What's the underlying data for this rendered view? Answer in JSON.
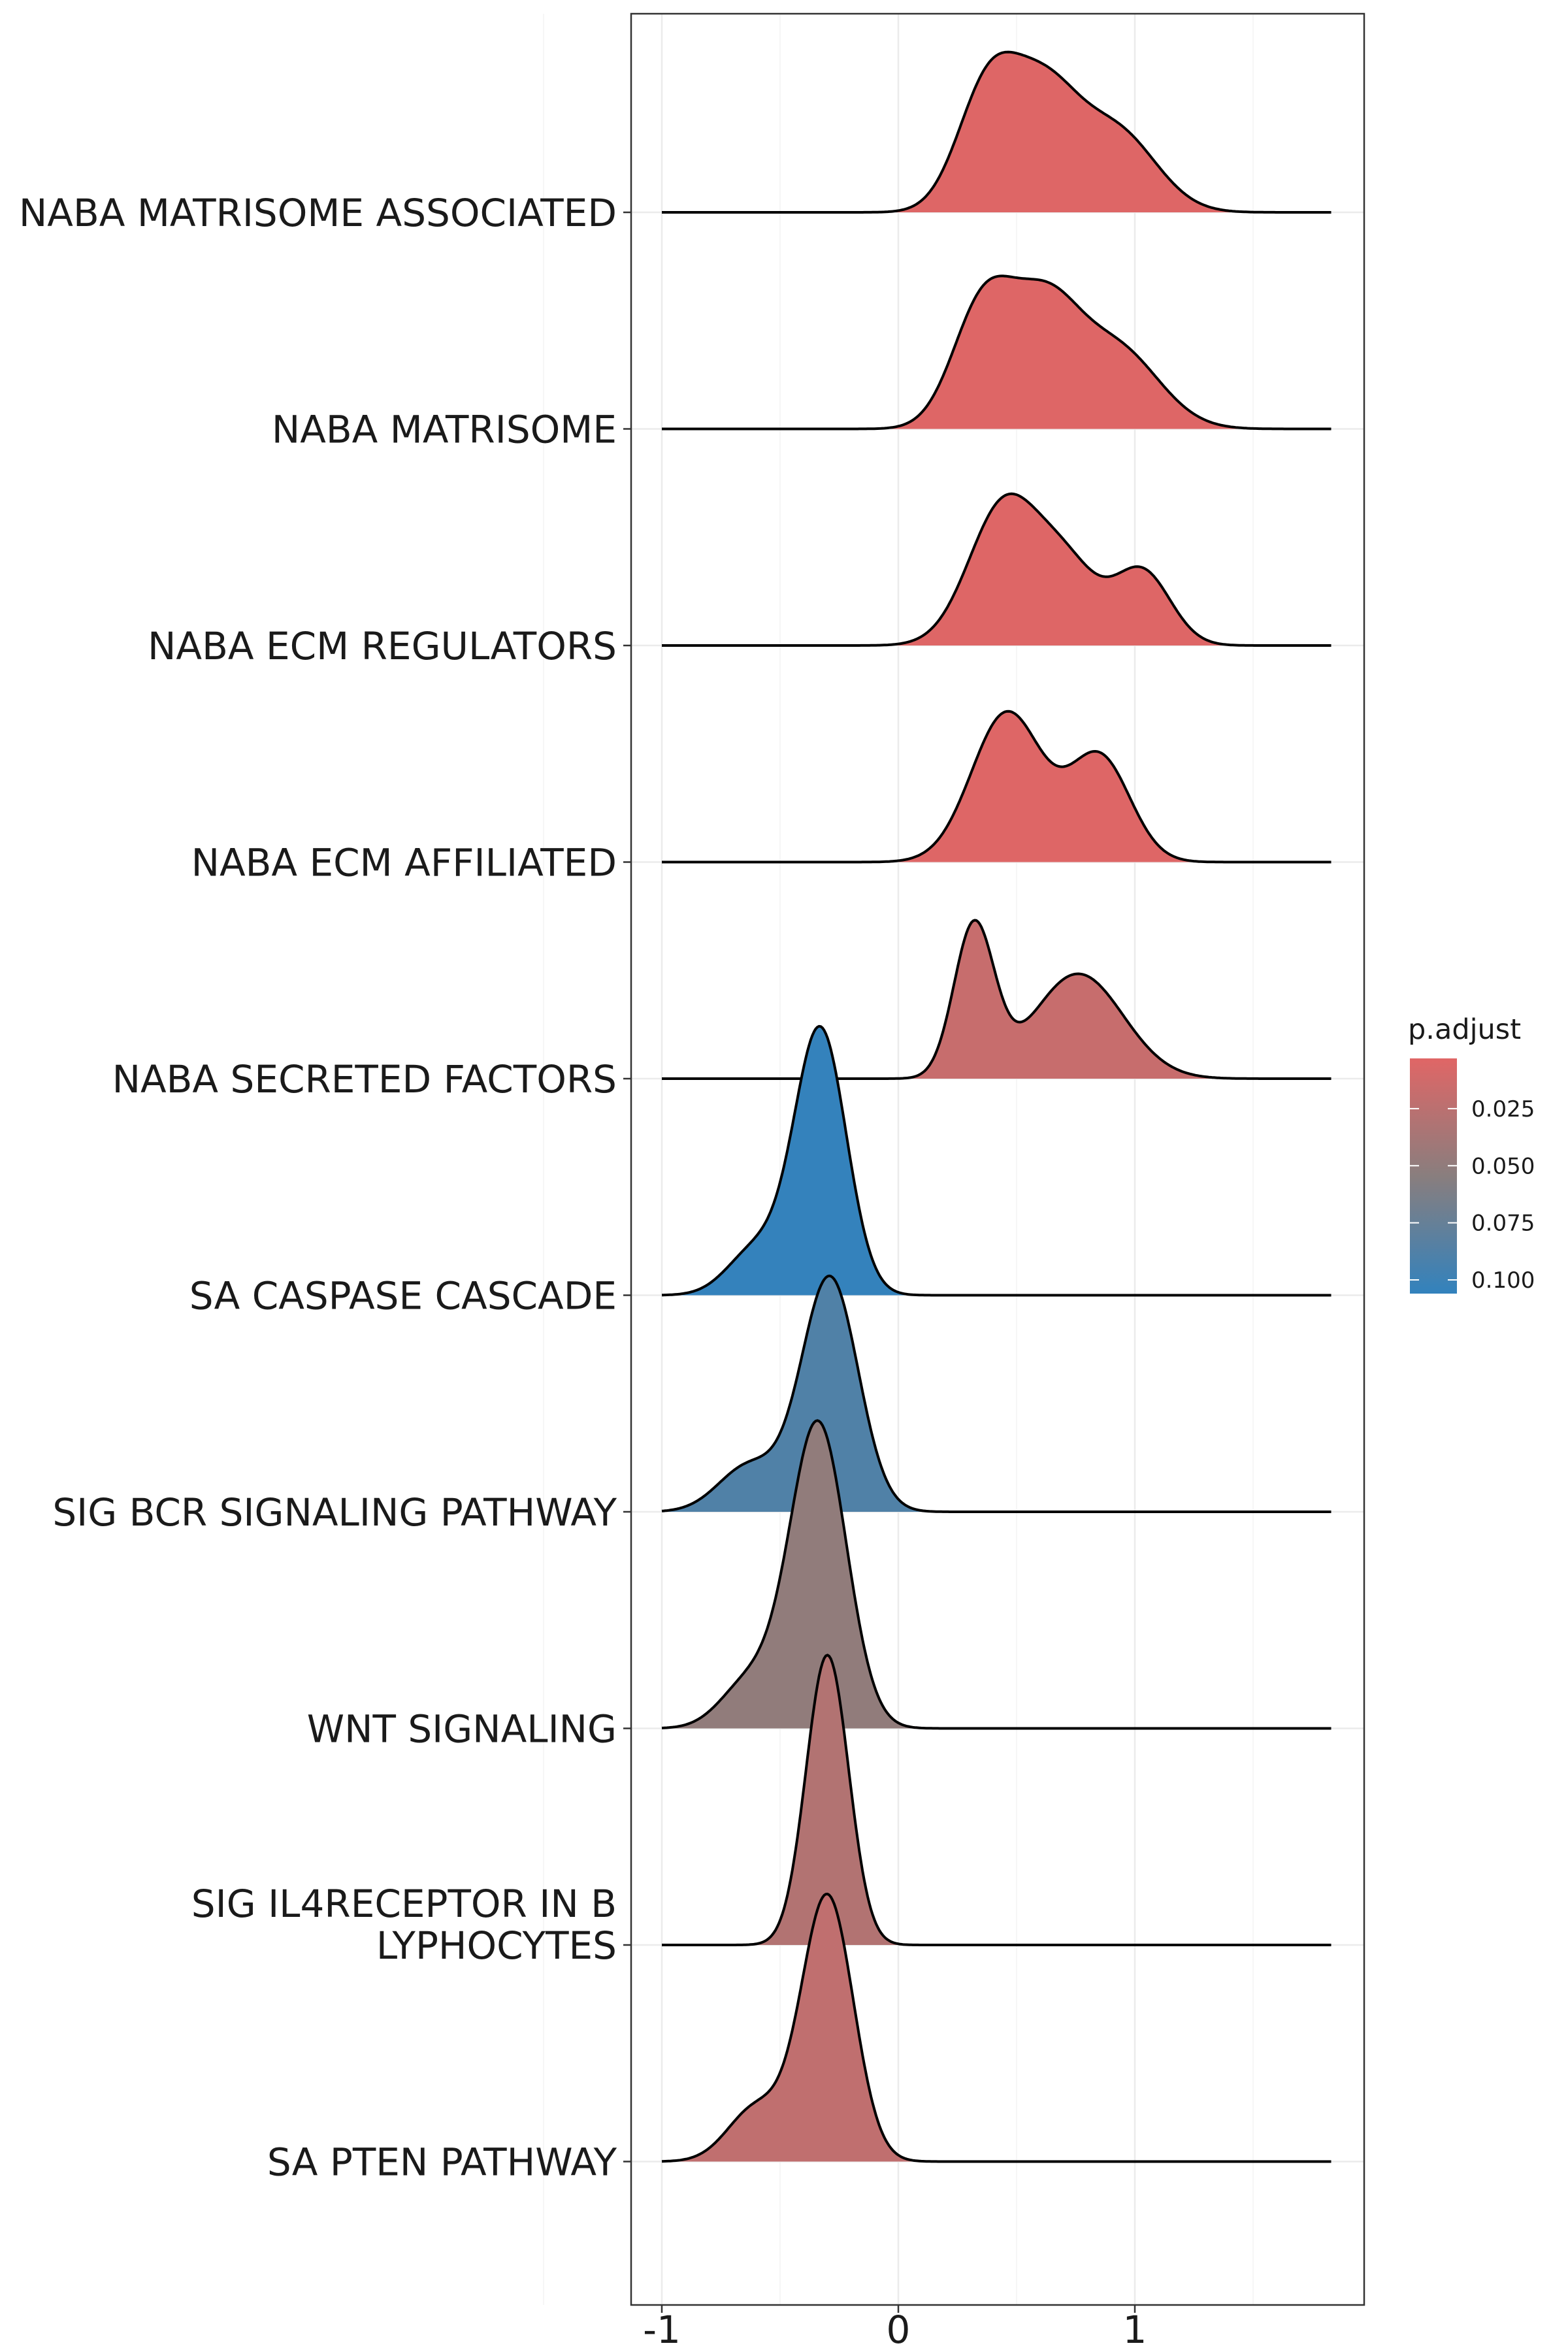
{
  "chart_data": {
    "type": "ridgeline",
    "title": "",
    "xlabel": "",
    "ylabel": "",
    "x_ticks": [
      "-1",
      "0",
      "1"
    ],
    "x_tick_values": [
      -1,
      0,
      1
    ],
    "xlim": [
      -1.14,
      1.95
    ],
    "data_x_range": [
      -1.0,
      1.83
    ],
    "grid": true,
    "legend": {
      "title": "p.adjust",
      "placement": "right",
      "ticks": [
        "0.025",
        "0.050",
        "0.075",
        "0.100"
      ],
      "tick_values": [
        0.025,
        0.05,
        0.075,
        0.1
      ],
      "range": [
        0.003,
        0.106
      ],
      "color_low": "#e06666",
      "color_high": "#3282bd"
    },
    "series": [
      {
        "label": "NABA MATRISOME ASSOCIATED",
        "p_adjust": 0.004,
        "peaks": [
          {
            "mu": 0.38,
            "sigma": 0.13,
            "amp": 0.8
          },
          {
            "mu": 0.62,
            "sigma": 0.14,
            "amp": 0.7
          },
          {
            "mu": 0.92,
            "sigma": 0.17,
            "amp": 0.52
          }
        ]
      },
      {
        "label": "NABA MATRISOME",
        "p_adjust": 0.004,
        "peaks": [
          {
            "mu": 0.36,
            "sigma": 0.13,
            "amp": 0.8
          },
          {
            "mu": 0.62,
            "sigma": 0.14,
            "amp": 0.72
          },
          {
            "mu": 0.92,
            "sigma": 0.18,
            "amp": 0.52
          }
        ]
      },
      {
        "label": "NABA ECM REGULATORS",
        "p_adjust": 0.004,
        "peaks": [
          {
            "mu": 0.45,
            "sigma": 0.15,
            "amp": 0.92
          },
          {
            "mu": 0.72,
            "sigma": 0.13,
            "amp": 0.45
          },
          {
            "mu": 1.03,
            "sigma": 0.12,
            "amp": 0.48
          }
        ]
      },
      {
        "label": "NABA ECM AFFILIATED",
        "p_adjust": 0.004,
        "peaks": [
          {
            "mu": 0.46,
            "sigma": 0.15,
            "amp": 0.97
          },
          {
            "mu": 0.85,
            "sigma": 0.13,
            "amp": 0.68
          }
        ]
      },
      {
        "label": "NABA SECRETED FACTORS",
        "p_adjust": 0.018,
        "peaks": [
          {
            "mu": 0.32,
            "sigma": 0.085,
            "amp": 0.98
          },
          {
            "mu": 0.76,
            "sigma": 0.19,
            "amp": 0.68
          }
        ]
      },
      {
        "label": "SA CASPASE CASCADE",
        "p_adjust": 0.105,
        "peaks": [
          {
            "mu": -0.33,
            "sigma": 0.11,
            "amp": 1.72
          },
          {
            "mu": -0.6,
            "sigma": 0.12,
            "amp": 0.3
          }
        ]
      },
      {
        "label": "SIG BCR SIGNALING PATHWAY",
        "p_adjust": 0.088,
        "peaks": [
          {
            "mu": -0.29,
            "sigma": 0.12,
            "amp": 1.52
          },
          {
            "mu": -0.63,
            "sigma": 0.13,
            "amp": 0.3
          }
        ]
      },
      {
        "label": "WNT SIGNALING",
        "p_adjust": 0.05,
        "peaks": [
          {
            "mu": -0.34,
            "sigma": 0.12,
            "amp": 1.98
          },
          {
            "mu": -0.63,
            "sigma": 0.12,
            "amp": 0.3
          }
        ]
      },
      {
        "label": "SIG IL4RECEPTOR IN B\nLYPHOCYTES",
        "p_adjust": 0.03,
        "peaks": [
          {
            "mu": -0.3,
            "sigma": 0.09,
            "amp": 1.88
          }
        ]
      },
      {
        "label": "SA PTEN PATHWAY",
        "p_adjust": 0.022,
        "peaks": [
          {
            "mu": -0.3,
            "sigma": 0.11,
            "amp": 1.72
          },
          {
            "mu": -0.6,
            "sigma": 0.12,
            "amp": 0.35
          }
        ]
      }
    ]
  }
}
